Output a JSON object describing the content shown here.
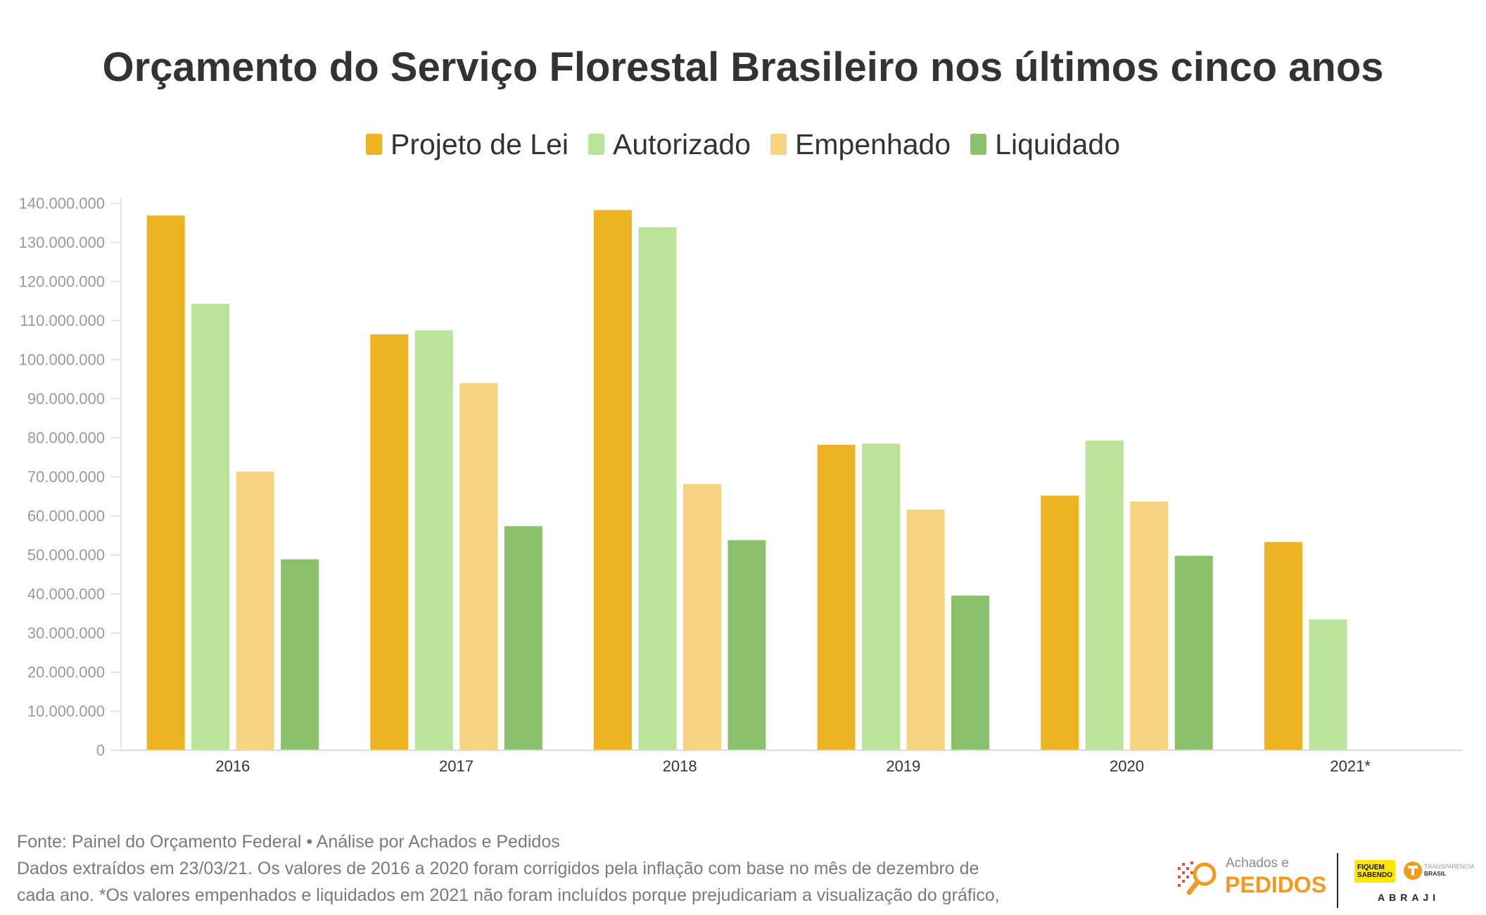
{
  "chart_data": {
    "type": "bar",
    "title": "Orçamento do Serviço Florestal Brasileiro nos últimos cinco anos",
    "xlabel": "",
    "ylabel": "",
    "categories": [
      "2016",
      "2017",
      "2018",
      "2019",
      "2020",
      "2021*"
    ],
    "series": [
      {
        "name": "Projeto de Lei",
        "color": "#EEB322",
        "values": [
          136900000,
          106500000,
          138300000,
          78200000,
          65200000,
          53300000
        ]
      },
      {
        "name": "Autorizado",
        "color": "#BCE39A",
        "values": [
          114300000,
          107500000,
          133900000,
          78500000,
          79300000,
          33500000
        ]
      },
      {
        "name": "Empenhado",
        "color": "#F6D37F",
        "values": [
          71300000,
          94000000,
          68200000,
          61600000,
          63700000,
          null
        ]
      },
      {
        "name": "Liquidado",
        "color": "#8CC16C",
        "values": [
          48900000,
          57400000,
          53800000,
          39600000,
          49800000,
          null
        ]
      }
    ],
    "ylim": [
      0,
      140000000
    ],
    "yticks": [
      0,
      10000000,
      20000000,
      30000000,
      40000000,
      50000000,
      60000000,
      70000000,
      80000000,
      90000000,
      100000000,
      110000000,
      120000000,
      130000000,
      140000000
    ],
    "ytick_labels": [
      "0",
      "10.000.000",
      "20.000.000",
      "30.000.000",
      "40.000.000",
      "50.000.000",
      "60.000.000",
      "70.000.000",
      "80.000.000",
      "90.000.000",
      "100.000.000",
      "110.000.000",
      "120.000.000",
      "130.000.000",
      "140.000.000"
    ],
    "grid": false,
    "legend_position": "top"
  },
  "footer": {
    "source": "Fonte: Painel do Orçamento Federal • Análise por Achados e Pedidos",
    "note_lines": [
      "Dados extraídos em 23/03/21. Os valores de 2016 a 2020 foram corrigidos pela inflação com base no mês de dezembro de",
      "cada ano. *Os valores empenhados e liquidados em 2021 não foram incluídos porque prejudicariam a visualização do gráfico,"
    ]
  },
  "logos": {
    "achados_pedidos": {
      "line1": "Achados e",
      "line2": "PEDIDOS",
      "color": "#F39A1E"
    },
    "fiquem_sabendo": {
      "line1": "FIQUEM",
      "line2": "SABENDO",
      "color": "#FFE600"
    },
    "transparencia_brasil": {
      "line1": "TRANSPARÊNCIA",
      "line2": "BRASIL",
      "color": "#F39A1E"
    },
    "abraji": "ABRAJI"
  }
}
